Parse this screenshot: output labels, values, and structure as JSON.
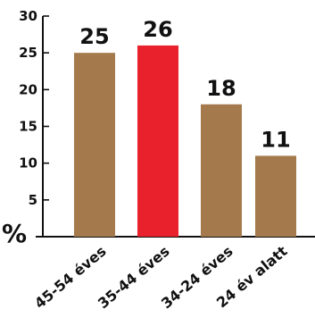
{
  "header_text": "",
  "chart_data": {
    "type": "bar",
    "categories": [
      "45-54 éves",
      "35-44 éves",
      "34-24 éves",
      "24 év alatt"
    ],
    "values": [
      25,
      26,
      18,
      11
    ],
    "value_labels": [
      "25",
      "26",
      "18",
      "11"
    ],
    "ylabel": "%",
    "ylim": [
      0,
      30
    ],
    "yticks": [
      0,
      5,
      10,
      15,
      20,
      25,
      30
    ],
    "ytick_labels": [
      "",
      "5",
      "10",
      "15",
      "20",
      "25",
      "30"
    ],
    "grid": false,
    "colors": {
      "bar": "#a47a4c",
      "highlight": "#e8212d",
      "axis": "#111111"
    },
    "highlight_index": 1
  }
}
